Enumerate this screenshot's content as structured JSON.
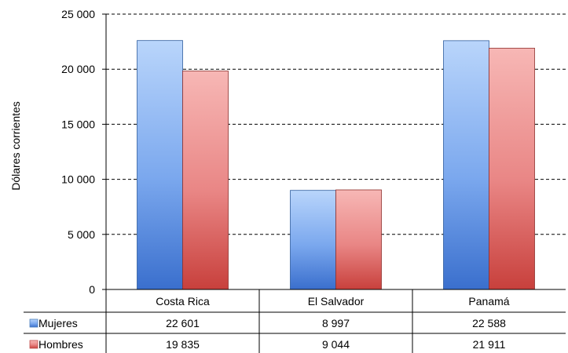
{
  "chart_data": {
    "type": "bar",
    "ylabel": "Dólares corrientes",
    "ylim": [
      0,
      25000
    ],
    "yticks": [
      0,
      5000,
      10000,
      15000,
      20000,
      25000
    ],
    "ytick_labels": [
      "0",
      "5 000",
      "10 000",
      "15 000",
      "20 000",
      "25 000"
    ],
    "grid": true,
    "legend": "table-left",
    "categories": [
      "Costa Rica",
      "El Salvador",
      "Panamá"
    ],
    "series": [
      {
        "name": "Mujeres",
        "values": [
          22601,
          8997,
          22588
        ],
        "labels": [
          "22 601",
          "8 997",
          "22 588"
        ],
        "color": "#4f81bd"
      },
      {
        "name": "Hombres",
        "values": [
          19835,
          9044,
          21911
        ],
        "labels": [
          "19 835",
          "9 044",
          "21 911"
        ],
        "color": "#c0504d"
      }
    ]
  }
}
